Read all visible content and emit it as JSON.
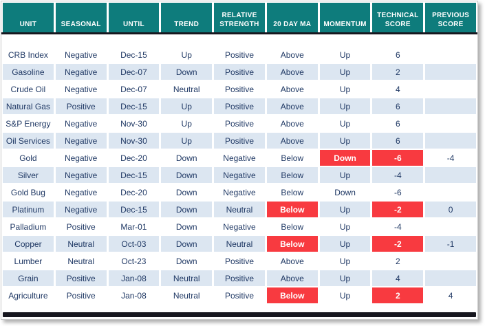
{
  "colors": {
    "header_bg": "#0e7c7c",
    "header_text": "#ffffff",
    "stripe_bg": "#dce6f1",
    "alert_bg": "#f83a40",
    "text": "#1f3864",
    "line": "#17171f"
  },
  "chart_data": {
    "type": "table",
    "columns": [
      "UNIT",
      "SEASONAL",
      "UNTIL",
      "TREND",
      "RELATIVE STRENGTH",
      "20 DAY MA",
      "MOMENTUM",
      "TECHNICAL SCORE",
      "PREVIOUS SCORE"
    ],
    "column_keys": [
      "unit",
      "seasonal",
      "until",
      "trend",
      "relative_strength",
      "ma_20day",
      "momentum",
      "technical_score",
      "previous_score"
    ],
    "rows": [
      {
        "unit": "CRB Index",
        "seasonal": "Negative",
        "until": "Dec-15",
        "trend": "Up",
        "relative_strength": "Positive",
        "ma_20day": "Above",
        "momentum": "Up",
        "technical_score": "6",
        "previous_score": "",
        "highlights": []
      },
      {
        "unit": "Gasoline",
        "seasonal": "Negative",
        "until": "Dec-07",
        "trend": "Down",
        "relative_strength": "Positive",
        "ma_20day": "Above",
        "momentum": "Up",
        "technical_score": "2",
        "previous_score": "",
        "highlights": []
      },
      {
        "unit": "Crude Oil",
        "seasonal": "Negative",
        "until": "Dec-07",
        "trend": "Neutral",
        "relative_strength": "Positive",
        "ma_20day": "Above",
        "momentum": "Up",
        "technical_score": "4",
        "previous_score": "",
        "highlights": []
      },
      {
        "unit": "Natural Gas",
        "seasonal": "Positive",
        "until": "Dec-15",
        "trend": "Up",
        "relative_strength": "Positive",
        "ma_20day": "Above",
        "momentum": "Up",
        "technical_score": "6",
        "previous_score": "",
        "highlights": []
      },
      {
        "unit": "S&P Energy",
        "seasonal": "Negative",
        "until": "Nov-30",
        "trend": "Up",
        "relative_strength": "Positive",
        "ma_20day": "Above",
        "momentum": "Up",
        "technical_score": "6",
        "previous_score": "",
        "highlights": []
      },
      {
        "unit": "Oil Services",
        "seasonal": "Negative",
        "until": "Nov-30",
        "trend": "Up",
        "relative_strength": "Positive",
        "ma_20day": "Above",
        "momentum": "Up",
        "technical_score": "6",
        "previous_score": "",
        "highlights": []
      },
      {
        "unit": "Gold",
        "seasonal": "Negative",
        "until": "Dec-20",
        "trend": "Down",
        "relative_strength": "Negative",
        "ma_20day": "Below",
        "momentum": "Down",
        "technical_score": "-6",
        "previous_score": "-4",
        "highlights": [
          "momentum",
          "technical_score"
        ]
      },
      {
        "unit": "Silver",
        "seasonal": "Negative",
        "until": "Dec-15",
        "trend": "Down",
        "relative_strength": "Negative",
        "ma_20day": "Below",
        "momentum": "Up",
        "technical_score": "-4",
        "previous_score": "",
        "highlights": []
      },
      {
        "unit": "Gold Bug",
        "seasonal": "Negative",
        "until": "Dec-20",
        "trend": "Down",
        "relative_strength": "Negative",
        "ma_20day": "Below",
        "momentum": "Down",
        "technical_score": "-6",
        "previous_score": "",
        "highlights": []
      },
      {
        "unit": "Platinum",
        "seasonal": "Negative",
        "until": "Dec-15",
        "trend": "Down",
        "relative_strength": "Neutral",
        "ma_20day": "Below",
        "momentum": "Up",
        "technical_score": "-2",
        "previous_score": "0",
        "highlights": [
          "ma_20day",
          "technical_score"
        ]
      },
      {
        "unit": "Palladium",
        "seasonal": "Positive",
        "until": "Mar-01",
        "trend": "Down",
        "relative_strength": "Negative",
        "ma_20day": "Below",
        "momentum": "Up",
        "technical_score": "-4",
        "previous_score": "",
        "highlights": []
      },
      {
        "unit": "Copper",
        "seasonal": "Neutral",
        "until": "Oct-03",
        "trend": "Down",
        "relative_strength": "Neutral",
        "ma_20day": "Below",
        "momentum": "Up",
        "technical_score": "-2",
        "previous_score": "-1",
        "highlights": [
          "ma_20day",
          "technical_score"
        ]
      },
      {
        "unit": "Lumber",
        "seasonal": "Neutral",
        "until": "Oct-23",
        "trend": "Down",
        "relative_strength": "Positive",
        "ma_20day": "Above",
        "momentum": "Up",
        "technical_score": "2",
        "previous_score": "",
        "highlights": []
      },
      {
        "unit": "Grain",
        "seasonal": "Positive",
        "until": "Jan-08",
        "trend": "Neutral",
        "relative_strength": "Positive",
        "ma_20day": "Above",
        "momentum": "Up",
        "technical_score": "4",
        "previous_score": "",
        "highlights": []
      },
      {
        "unit": "Agriculture",
        "seasonal": "Positive",
        "until": "Jan-08",
        "trend": "Neutral",
        "relative_strength": "Positive",
        "ma_20day": "Below",
        "momentum": "Up",
        "technical_score": "2",
        "previous_score": "4",
        "highlights": [
          "ma_20day",
          "technical_score"
        ]
      }
    ]
  }
}
